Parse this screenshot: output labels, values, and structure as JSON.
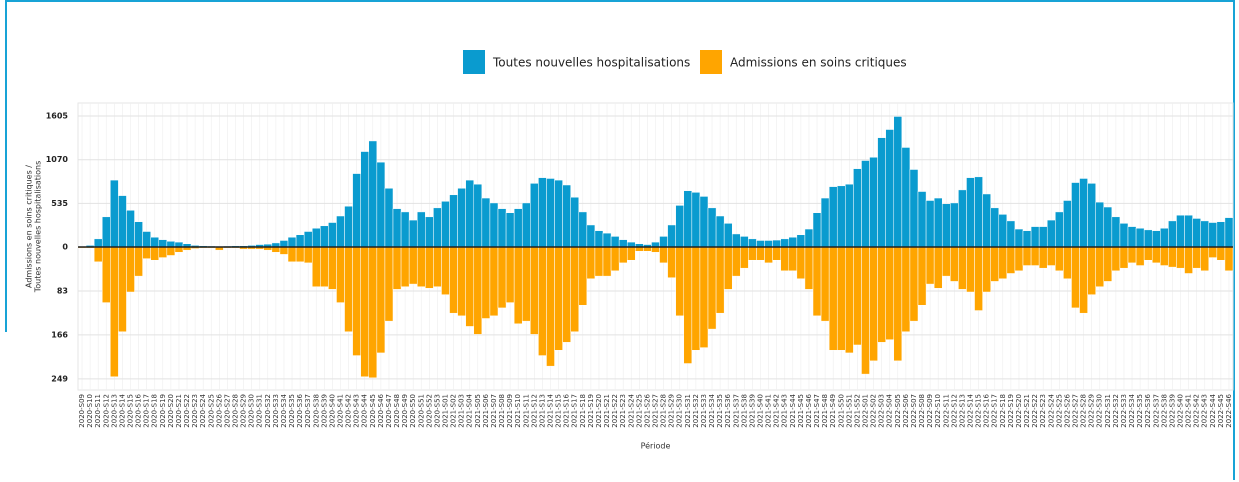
{
  "chart_data": {
    "type": "bar",
    "mirrored": true,
    "xlabel": "Période",
    "ylabel": [
      "Admissions en soins critiques /",
      "Toutes nouvelles hospitalisations"
    ],
    "categories": [
      "2020-S09",
      "2020-S10",
      "2020-S11",
      "2020-S12",
      "2020-S13",
      "2020-S14",
      "2020-S15",
      "2020-S16",
      "2020-S17",
      "2020-S18",
      "2020-S19",
      "2020-S20",
      "2020-S21",
      "2020-S22",
      "2020-S23",
      "2020-S24",
      "2020-S25",
      "2020-S26",
      "2020-S27",
      "2020-S28",
      "2020-S29",
      "2020-S30",
      "2020-S31",
      "2020-S32",
      "2020-S33",
      "2020-S34",
      "2020-S35",
      "2020-S36",
      "2020-S37",
      "2020-S38",
      "2020-S39",
      "2020-S40",
      "2020-S41",
      "2020-S42",
      "2020-S43",
      "2020-S44",
      "2020-S45",
      "2020-S46",
      "2020-S47",
      "2020-S48",
      "2020-S49",
      "2020-S50",
      "2020-S51",
      "2020-S52",
      "2020-S53",
      "2021-S01",
      "2021-S02",
      "2021-S03",
      "2021-S04",
      "2021-S05",
      "2021-S06",
      "2021-S07",
      "2021-S08",
      "2021-S09",
      "2021-S10",
      "2021-S11",
      "2021-S12",
      "2021-S13",
      "2021-S14",
      "2021-S15",
      "2021-S16",
      "2021-S17",
      "2021-S18",
      "2021-S19",
      "2021-S20",
      "2021-S21",
      "2021-S22",
      "2021-S23",
      "2021-S24",
      "2021-S25",
      "2021-S26",
      "2021-S27",
      "2021-S28",
      "2021-S29",
      "2021-S30",
      "2021-S31",
      "2021-S32",
      "2021-S33",
      "2021-S34",
      "2021-S35",
      "2021-S36",
      "2021-S37",
      "2021-S38",
      "2021-S39",
      "2021-S40",
      "2021-S41",
      "2021-S42",
      "2021-S43",
      "2021-S44",
      "2021-S45",
      "2021-S46",
      "2021-S47",
      "2021-S48",
      "2021-S49",
      "2021-S50",
      "2021-S51",
      "2021-S52",
      "2022-S01",
      "2022-S02",
      "2022-S03",
      "2022-S04",
      "2022-S05",
      "2022-S06",
      "2022-S07",
      "2022-S08",
      "2022-S09",
      "2022-S10",
      "2022-S11",
      "2022-S12",
      "2022-S13",
      "2022-S14",
      "2022-S15",
      "2022-S16",
      "2022-S17",
      "2022-S18",
      "2022-S19",
      "2022-S20",
      "2022-S21",
      "2022-S22",
      "2022-S23",
      "2022-S24",
      "2022-S25",
      "2022-S26",
      "2022-S27",
      "2022-S28",
      "2022-S29",
      "2022-S30",
      "2022-S31",
      "2022-S32",
      "2022-S33",
      "2022-S34",
      "2022-S35",
      "2022-S36",
      "2022-S37",
      "2022-S38",
      "2022-S39",
      "2022-S40",
      "2022-S41",
      "2022-S42",
      "2022-S43",
      "2022-S44",
      "2022-S45",
      "2022-S46"
    ],
    "series": [
      {
        "name": "Toutes nouvelles hospitalisations",
        "color": "#0a9bcf",
        "values": [
          10,
          20,
          100,
          370,
          820,
          630,
          450,
          310,
          190,
          120,
          90,
          70,
          60,
          40,
          20,
          15,
          12,
          10,
          12,
          15,
          15,
          20,
          30,
          35,
          50,
          80,
          120,
          150,
          190,
          230,
          260,
          300,
          380,
          500,
          900,
          1170,
          1300,
          1040,
          720,
          470,
          430,
          330,
          430,
          370,
          480,
          560,
          640,
          720,
          820,
          770,
          600,
          540,
          470,
          420,
          470,
          540,
          780,
          850,
          840,
          820,
          760,
          610,
          430,
          270,
          200,
          170,
          130,
          90,
          60,
          40,
          30,
          60,
          130,
          270,
          510,
          690,
          670,
          620,
          480,
          380,
          290,
          160,
          130,
          100,
          80,
          80,
          85,
          100,
          120,
          150,
          220,
          420,
          600,
          740,
          750,
          770,
          960,
          1060,
          1100,
          1340,
          1440,
          1600,
          1220,
          950,
          680,
          570,
          600,
          530,
          540,
          700,
          850,
          860,
          650,
          480,
          400,
          320,
          220,
          200,
          250,
          250,
          330,
          430,
          570,
          790,
          840,
          780,
          550,
          490,
          370,
          290,
          250,
          230,
          210,
          200,
          230,
          320,
          390,
          390,
          350,
          320,
          300,
          310,
          360
        ]
      },
      {
        "name": "Admissions en soins critiques",
        "color": "#ffa500",
        "axis": "y2",
        "values": [
          2,
          2,
          28,
          105,
          245,
          160,
          85,
          55,
          22,
          25,
          20,
          16,
          10,
          6,
          3,
          2,
          2,
          6,
          2,
          2,
          4,
          4,
          4,
          6,
          10,
          14,
          28,
          28,
          30,
          75,
          75,
          80,
          105,
          160,
          205,
          245,
          247,
          200,
          140,
          80,
          75,
          70,
          75,
          78,
          75,
          90,
          125,
          130,
          150,
          165,
          135,
          130,
          115,
          105,
          145,
          140,
          165,
          205,
          225,
          195,
          180,
          160,
          110,
          60,
          55,
          55,
          45,
          30,
          25,
          8,
          8,
          10,
          30,
          58,
          130,
          220,
          195,
          190,
          155,
          125,
          80,
          55,
          40,
          25,
          25,
          30,
          25,
          45,
          45,
          60,
          80,
          130,
          140,
          195,
          195,
          200,
          185,
          240,
          215,
          180,
          175,
          215,
          160,
          140,
          110,
          70,
          78,
          55,
          65,
          80,
          85,
          120,
          85,
          65,
          60,
          50,
          45,
          35,
          35,
          40,
          35,
          45,
          60,
          115,
          125,
          90,
          75,
          65,
          45,
          40,
          30,
          35,
          25,
          30,
          35,
          38,
          40,
          50,
          40,
          45,
          20,
          25,
          45
        ]
      }
    ],
    "ylim": [
      0,
      1765
    ],
    "yticks": [
      0,
      535,
      1070,
      1605
    ],
    "y2lim": [
      0,
      270
    ],
    "y2ticks": [
      83,
      166,
      249
    ],
    "grid": true,
    "legend": "top"
  }
}
